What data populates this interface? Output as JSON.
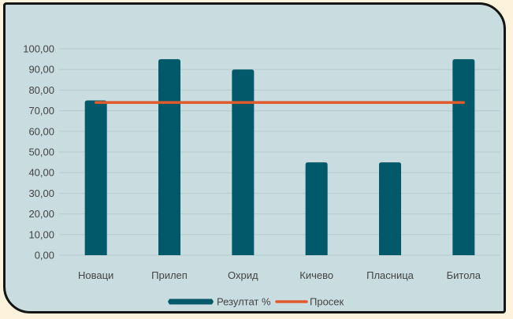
{
  "chart_data": {
    "type": "bar",
    "categories": [
      "Новаци",
      "Прилеп",
      "Охрид",
      "Кичево",
      "Пласница",
      "Битола"
    ],
    "series": [
      {
        "name": "Резултат %",
        "type": "bar",
        "values": [
          75,
          95,
          90,
          45,
          45,
          95
        ],
        "color": "#01596a"
      },
      {
        "name": "Просек",
        "type": "line",
        "values": [
          74,
          74,
          74,
          74,
          74,
          74
        ],
        "color": "#e05a2b"
      }
    ],
    "y_ticks": [
      "0,00",
      "10,00",
      "20,00",
      "30,00",
      "40,00",
      "50,00",
      "60,00",
      "70,00",
      "80,00",
      "90,00",
      "100,00"
    ],
    "ylim": [
      0,
      100
    ],
    "grid": true,
    "legend": "bottom",
    "title": "",
    "xlabel": "",
    "ylabel": ""
  },
  "colors": {
    "plot_background": "#c9dcdf",
    "page_background": "#fdf3dc",
    "border": "#151515",
    "gridline": "#b5cbcf"
  }
}
